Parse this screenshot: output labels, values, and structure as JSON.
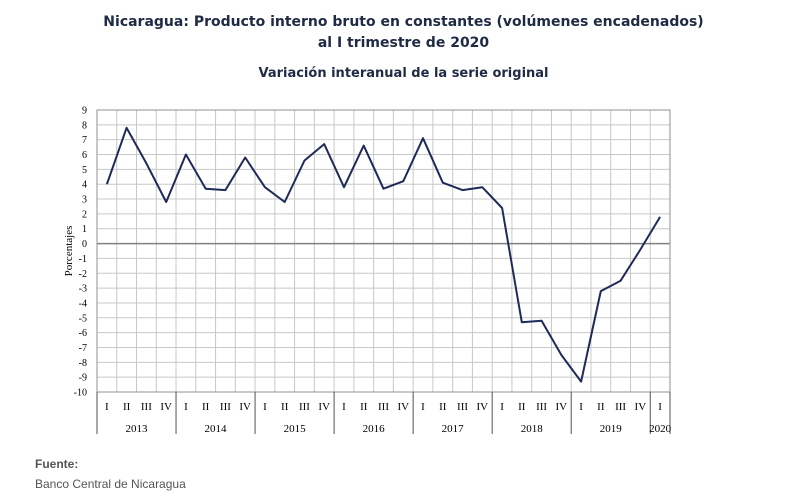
{
  "header": {
    "title_line1": "Nicaragua: Producto interno bruto en constantes (volúmenes encadenados)",
    "title_line2": "al I trimestre de 2020",
    "subtitle": "Variación interanual de la serie original"
  },
  "footer": {
    "source_label": "Fuente:",
    "source_text": "Banco Central de Nicaragua"
  },
  "chart_data": {
    "type": "line",
    "title": "Nicaragua: Producto interno bruto en constantes (volúmenes encadenados) al I trimestre de 2020",
    "subtitle": "Variación interanual de la serie original",
    "xlabel": "",
    "ylabel": "Porcentajes",
    "ylim": [
      -10,
      9
    ],
    "yticks": [
      9,
      8,
      7,
      6,
      5,
      4,
      3,
      2,
      1,
      0,
      -1,
      -2,
      -3,
      -4,
      -5,
      -6,
      -7,
      -8,
      -9,
      -10
    ],
    "grid": true,
    "line_color": "#1f2a5a",
    "zero_line_color": "#808080",
    "years": [
      "2013",
      "2014",
      "2015",
      "2016",
      "2017",
      "2018",
      "2019",
      "2020"
    ],
    "quarters": [
      "I",
      "II",
      "III",
      "IV",
      "I",
      "II",
      "III",
      "IV",
      "I",
      "II",
      "III",
      "IV",
      "I",
      "II",
      "III",
      "IV",
      "I",
      "II",
      "III",
      "IV",
      "I",
      "II",
      "III",
      "IV",
      "I",
      "II",
      "III",
      "IV",
      "I"
    ],
    "series": [
      {
        "values": [
          4.0,
          7.8,
          5.4,
          2.8,
          6.0,
          3.7,
          3.6,
          5.8,
          3.8,
          2.8,
          5.6,
          6.7,
          3.8,
          6.6,
          3.7,
          4.2,
          7.1,
          4.1,
          3.6,
          3.8,
          2.4,
          -5.3,
          -5.2,
          -7.5,
          -9.3,
          -3.2,
          -2.5,
          -0.4,
          1.8
        ]
      }
    ]
  }
}
